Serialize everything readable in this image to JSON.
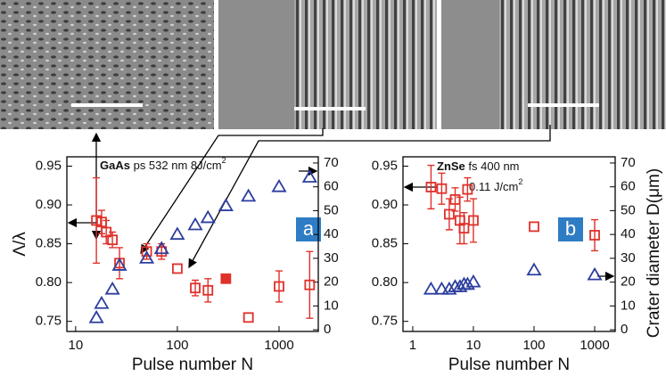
{
  "chart_data": [
    {
      "type": "scatter",
      "xscale": "log",
      "xlabel": "Pulse number N",
      "ylabel": "Λ/λ",
      "xlim": [
        8.2,
        2430
      ],
      "xticks": [
        10,
        100,
        1000
      ],
      "ylim": [
        0.737,
        0.962
      ],
      "yticks": [
        0.75,
        {
          "value": 0.8,
          "label": "0.80"
        },
        0.85,
        {
          "value": 0.9,
          "label": "0.90"
        },
        0.95
      ],
      "y2lim": [
        -0.7,
        72.6
      ],
      "y2ticks": [
        0,
        10,
        20,
        30,
        40,
        50,
        60,
        70
      ],
      "annotations": [
        "GaAs",
        "ps 532 nm 8J/cm",
        "2"
      ],
      "panel_label": "a",
      "series": [
        {
          "marker": "square",
          "color": "#e0302a",
          "fill": "none",
          "x": [
            16,
            18,
            20,
            23,
            27,
            50,
            70,
            100,
            150,
            200,
            500,
            1000,
            2000
          ],
          "values": [
            0.88,
            0.878,
            0.865,
            0.855,
            0.825,
            0.84,
            0.84,
            0.818,
            0.793,
            0.79,
            0.755,
            0.795,
            0.797
          ],
          "errors": [
            0.055,
            0.015,
            0.015,
            0.01,
            0.02,
            0.01,
            0.01,
            null,
            0.01,
            0.015,
            null,
            0.02,
            0.043
          ]
        },
        {
          "marker": "square",
          "color": "#e0302a",
          "fill": "#e0302a",
          "x": [
            300
          ],
          "values": [
            0.805
          ]
        },
        {
          "marker": "triangle",
          "color": "#2c3e9e",
          "fill": "none",
          "axis": "y2",
          "x": [
            16,
            18,
            23,
            27,
            50,
            70,
            100,
            150,
            200,
            300,
            500,
            1000,
            2000
          ],
          "values": [
            5,
            11,
            17,
            27,
            30,
            34,
            40,
            44,
            47,
            52,
            56,
            60,
            64
          ]
        }
      ]
    },
    {
      "type": "scatter",
      "xscale": "log",
      "xlabel": "Pulse number N",
      "y2label": "Crater diameter D(μm)",
      "xlim": [
        0.69,
        2178
      ],
      "xticks": [
        1,
        10,
        100,
        1000
      ],
      "ylim": [
        0.737,
        0.962
      ],
      "yticks": [
        0.75,
        {
          "value": 0.8,
          "label": "0.80"
        },
        0.85,
        {
          "value": 0.9,
          "label": "0.90"
        },
        0.95
      ],
      "y2lim": [
        -0.7,
        72.6
      ],
      "y2ticks": [
        0,
        10,
        20,
        30,
        40,
        50,
        60,
        70
      ],
      "annotations": [
        "ZnSe",
        "fs 400 nm",
        "0.11 J/cm",
        "2"
      ],
      "panel_label": "b",
      "series": [
        {
          "marker": "square",
          "color": "#e0302a",
          "fill": "none",
          "x": [
            2,
            3,
            4,
            5,
            6,
            7,
            8,
            10,
            100,
            1000
          ],
          "values": [
            0.923,
            0.921,
            0.888,
            0.907,
            0.88,
            0.87,
            0.92,
            0.88,
            0.872,
            0.861
          ],
          "errors": [
            0.028,
            0.02,
            0.02,
            0.015,
            0.03,
            0.02,
            0.015,
            0.028,
            null,
            0.02
          ]
        },
        {
          "marker": "triangle",
          "color": "#2c3e9e",
          "fill": "none",
          "axis": "y2",
          "x": [
            2,
            3,
            4,
            5,
            6,
            7,
            8,
            10,
            100,
            1000
          ],
          "values": [
            17,
            17,
            17,
            18,
            18,
            19,
            19,
            20,
            25,
            23
          ]
        }
      ]
    }
  ]
}
